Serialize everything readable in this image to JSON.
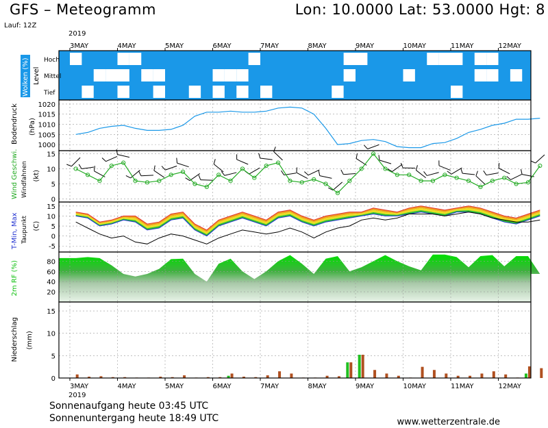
{
  "header": {
    "title": "GFS – Meteogramm",
    "coords": "Lon: 10.0000  Lat: 53.0000  Hgt: 8",
    "run": "Lauf: 12Z"
  },
  "footer": {
    "sunrise": "Sonnenaufgang heute 03:45 UTC",
    "sunset": "Sonnenuntergang heute 18:49 UTC",
    "website": "www.wetterzentrale.de"
  },
  "colors": {
    "cloud": "#1a98e8",
    "pressure": "#1a98e8",
    "wind": "#22aa22",
    "tmax": "#e03030",
    "tmin": "#2030d0",
    "dewpoint": "#000000",
    "humidity": "#10c010",
    "precip_rain": "#b05020",
    "precip_conv": "#20c020"
  },
  "chart_data": {
    "type": "line",
    "year": "2019",
    "date_labels": [
      "3MAY",
      "4MAY",
      "5MAY",
      "6MAY",
      "7MAY",
      "8MAY",
      "9MAY",
      "10MAY",
      "11MAY",
      "12MAY"
    ],
    "steps_per_day": 4,
    "panels": [
      {
        "id": "clouds",
        "title": "Wolken (%)",
        "subtitle": "Level",
        "ylabels": [
          "Hoch",
          "Mittel",
          "Tief"
        ],
        "type": "heatmap",
        "levels": {
          "hoch": [
            0,
            60,
            60,
            70,
            0,
            30,
            90,
            90,
            100,
            100,
            100,
            100,
            100,
            80,
            50,
            0,
            100,
            100,
            100,
            100,
            100,
            100,
            100,
            20,
            0,
            100,
            100,
            100,
            100,
            100,
            0,
            0,
            0,
            100,
            0,
            40,
            90,
            90,
            100,
            100
          ],
          "mittel": [
            100,
            60,
            0,
            30,
            0,
            70,
            0,
            0,
            100,
            100,
            100,
            80,
            0,
            0,
            0,
            100,
            100,
            100,
            100,
            90,
            100,
            80,
            60,
            0,
            100,
            100,
            100,
            100,
            0,
            100,
            100,
            100,
            80,
            60,
            0,
            40,
            90,
            0,
            100,
            100
          ],
          "tief": [
            100,
            0,
            60,
            60,
            0,
            100,
            100,
            40,
            100,
            100,
            40,
            60,
            0,
            80,
            20,
            60,
            0,
            60,
            100,
            100,
            70,
            100,
            0,
            100,
            50,
            60,
            100,
            70,
            100,
            100,
            100,
            100,
            20,
            100,
            80,
            100,
            100,
            100,
            100,
            100
          ]
        }
      },
      {
        "id": "pressure",
        "title": "Bodendruck",
        "unit": "(hPa)",
        "yticks": [
          1000,
          1005,
          1010,
          1015,
          1020
        ],
        "ylim": [
          997,
          1022
        ],
        "values": [
          1005,
          1006,
          1008,
          1009,
          1009.5,
          1008,
          1007,
          1007,
          1007.5,
          1009.5,
          1014,
          1016,
          1016,
          1016.5,
          1016,
          1016,
          1016.5,
          1018,
          1018.5,
          1018,
          1015,
          1008,
          1000,
          1000.5,
          1002,
          1002.5,
          1001.5,
          999,
          998.5,
          998.5,
          1000.5,
          1001,
          1003,
          1006,
          1007.5,
          1009.5,
          1010.5,
          1012.5,
          1012.5,
          1013
        ]
      },
      {
        "id": "wind",
        "title": "Wind Geschwi.",
        "subtitle": "Windfahnen",
        "unit": "(kt)",
        "yticks": [
          0,
          5,
          10,
          15
        ],
        "ylim": [
          -1,
          16
        ],
        "values": [
          10,
          8,
          6,
          11,
          12,
          6,
          5.5,
          6,
          8,
          9,
          5,
          4,
          8,
          6,
          10,
          7,
          11,
          12,
          6,
          5.5,
          6.5,
          5,
          2,
          6,
          10,
          15,
          10,
          8,
          8,
          6,
          6,
          8,
          7,
          6,
          4,
          6,
          7,
          5,
          5.5,
          11
        ]
      },
      {
        "id": "temperature",
        "title": "T-Min, Max",
        "subtitle": "Taupunkt",
        "unit": "(C)",
        "yticks": [
          -5,
          0,
          5,
          10,
          15
        ],
        "ylim": [
          -8,
          17
        ],
        "tmax": [
          12,
          11,
          7,
          8,
          10,
          10,
          6,
          7,
          11,
          12,
          6,
          3,
          8,
          10,
          12,
          10,
          8,
          12,
          13,
          10,
          8,
          10,
          11,
          12,
          12,
          14,
          13,
          12,
          14,
          15,
          14,
          13,
          14,
          15,
          14,
          12,
          10,
          9,
          11,
          13
        ],
        "tmin": [
          10,
          9,
          5,
          6,
          8,
          7,
          3,
          4,
          8,
          9,
          3,
          0,
          5,
          7,
          9,
          7,
          5,
          9,
          10,
          7,
          5,
          7,
          8,
          9,
          10,
          11,
          10,
          10,
          11,
          12,
          11,
          10,
          12,
          12,
          11,
          9,
          7,
          6,
          8,
          10
        ],
        "dewpoint": [
          7,
          4,
          1,
          -1,
          0,
          -3,
          -4,
          -1,
          1,
          0,
          -2,
          -4,
          -1,
          1,
          3,
          2,
          1,
          2,
          4,
          2,
          -1,
          2,
          4,
          5,
          8,
          9,
          8,
          9,
          11,
          11,
          11,
          10,
          11,
          12,
          11,
          9,
          8,
          7,
          7,
          8
        ]
      },
      {
        "id": "humidity",
        "title": "2m RF (%)",
        "yticks": [
          20,
          40,
          60,
          80
        ],
        "ylim": [
          0,
          98
        ],
        "values": [
          86,
          88,
          86,
          72,
          55,
          50,
          55,
          65,
          84,
          85,
          55,
          40,
          75,
          85,
          60,
          45,
          60,
          80,
          92,
          75,
          55,
          85,
          90,
          60,
          68,
          80,
          92,
          80,
          70,
          62,
          93,
          93,
          88,
          68,
          90,
          92,
          70,
          90,
          90,
          55
        ]
      },
      {
        "id": "precip",
        "title": "Niederschlag",
        "unit": "(mm)",
        "yticks": [
          0,
          5,
          10,
          15
        ],
        "ylim": [
          0,
          17
        ],
        "values": [
          [
            0.8,
            0
          ],
          [
            0.3,
            0
          ],
          [
            0.4,
            0
          ],
          [
            0.2,
            0
          ],
          [
            0.2,
            0
          ],
          [
            0.1,
            0
          ],
          [
            0.1,
            0
          ],
          [
            0.3,
            0
          ],
          [
            0.2,
            0
          ],
          [
            0.6,
            0
          ],
          [
            0.1,
            0
          ],
          [
            0.2,
            0
          ],
          [
            0.2,
            0
          ],
          [
            1.0,
            0.5
          ],
          [
            0.3,
            0
          ],
          [
            0.2,
            0
          ],
          [
            0.6,
            0
          ],
          [
            1.5,
            0
          ],
          [
            1.0,
            0
          ],
          [
            0.1,
            0
          ],
          [
            0.1,
            0
          ],
          [
            0.5,
            0
          ],
          [
            0.4,
            0
          ],
          [
            3.5,
            3.5
          ],
          [
            5.2,
            5.2
          ],
          [
            1.8,
            0
          ],
          [
            1.0,
            0
          ],
          [
            0.5,
            0
          ],
          [
            0.1,
            0
          ],
          [
            2.5,
            0
          ],
          [
            1.8,
            0
          ],
          [
            1.0,
            0
          ],
          [
            0.5,
            0
          ],
          [
            0.5,
            0
          ],
          [
            1.0,
            0
          ],
          [
            1.5,
            0
          ],
          [
            0.8,
            0
          ],
          [
            0.1,
            0
          ],
          [
            2.6,
            1.0
          ],
          [
            2.2,
            0
          ]
        ]
      }
    ]
  }
}
